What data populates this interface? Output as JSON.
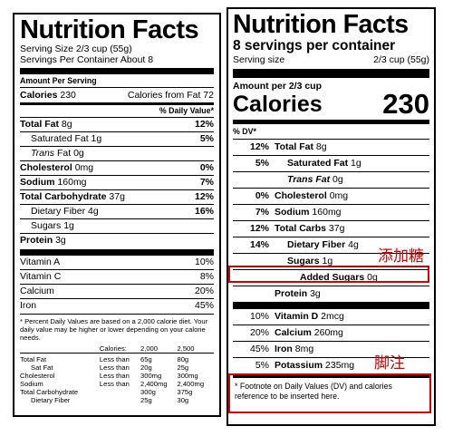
{
  "old_label": {
    "title": "Nutrition Facts",
    "serving_size": "Serving Size 2/3 cup (55g)",
    "servings_per_container": "Servings Per Container About 8",
    "amount_per_serving": "Amount Per Serving",
    "calories_label": "Calories",
    "calories_value": "230",
    "calories_from_fat": "Calories from Fat 72",
    "daily_value_header": "% Daily Value*",
    "nutrients": [
      {
        "name": "Total Fat",
        "amount": "8g",
        "dv": "12%"
      },
      {
        "name": "Saturated Fat",
        "amount": "1g",
        "dv": "5%"
      },
      {
        "name": "Trans",
        "amount": "Fat 0g",
        "dv": ""
      },
      {
        "name": "Cholesterol",
        "amount": "0mg",
        "dv": "0%"
      },
      {
        "name": "Sodium",
        "amount": "160mg",
        "dv": "7%"
      },
      {
        "name": "Total Carbohydrate",
        "amount": "37g",
        "dv": "12%"
      },
      {
        "name": "Dietary Fiber",
        "amount": "4g",
        "dv": "16%"
      },
      {
        "name": "Sugars",
        "amount": "1g",
        "dv": ""
      },
      {
        "name": "Protein",
        "amount": "3g",
        "dv": ""
      }
    ],
    "vitamins": [
      {
        "name": "Vitamin A",
        "dv": "10%"
      },
      {
        "name": "Vitamin C",
        "dv": "8%"
      },
      {
        "name": "Calcium",
        "dv": "20%"
      },
      {
        "name": "Iron",
        "dv": "45%"
      }
    ],
    "footnote": "* Percent Daily Values are based on a 2,000 calorie diet. Your daily value may be higher or lower depending on your calorie needs.",
    "footnote_table": {
      "header": [
        "",
        "Calories:",
        "2,000",
        "2,500"
      ],
      "rows": [
        [
          "Total Fat",
          "Less than",
          "65g",
          "80g"
        ],
        [
          "Sat Fat",
          "Less than",
          "20g",
          "25g"
        ],
        [
          "Cholesterol",
          "Less than",
          "300mg",
          "300mg"
        ],
        [
          "Sodium",
          "Less than",
          "2,400mg",
          "2,400mg"
        ],
        [
          "Total Carbohydrate",
          "",
          "300g",
          "375g"
        ],
        [
          "Dietary Fiber",
          "",
          "25g",
          "30g"
        ]
      ]
    }
  },
  "new_label": {
    "title": "Nutrition Facts",
    "servings_per_container": "8 servings per container",
    "serving_size_label": "Serving size",
    "serving_size_value": "2/3 cup (55g)",
    "amount_per": "Amount per 2/3 cup",
    "calories_label": "Calories",
    "calories_value": "230",
    "dv_header": "% DV*",
    "nutrients": [
      {
        "dv": "12%",
        "name": "Total Fat",
        "amount": "8g"
      },
      {
        "dv": "5%",
        "name": "Saturated Fat",
        "amount": "1g"
      },
      {
        "dv": "",
        "name": "Trans Fat",
        "amount": "0g"
      },
      {
        "dv": "0%",
        "name": "Cholesterol",
        "amount": "0mg"
      },
      {
        "dv": "7%",
        "name": "Sodium",
        "amount": "160mg"
      },
      {
        "dv": "12%",
        "name": "Total Carbs",
        "amount": "37g"
      },
      {
        "dv": "14%",
        "name": "Dietary Fiber",
        "amount": "4g"
      },
      {
        "dv": "",
        "name": "Sugars",
        "amount": "1g"
      },
      {
        "dv": "",
        "name": "Added Sugars",
        "amount": "0g"
      },
      {
        "dv": "",
        "name": "Protein",
        "amount": "3g"
      }
    ],
    "vitamins": [
      {
        "dv": "10%",
        "name": "Vitamin D",
        "amount": "2mcg"
      },
      {
        "dv": "20%",
        "name": "Calcium",
        "amount": "260mg"
      },
      {
        "dv": "45%",
        "name": "Iron",
        "amount": "8mg"
      },
      {
        "dv": "5%",
        "name": "Potassium",
        "amount": "235mg"
      }
    ],
    "footnote": "* Footnote on Daily Values (DV) and calories reference to be inserted here."
  },
  "annotations": {
    "added_sugars_note": "添加糖",
    "footnote_note": "脚注",
    "color": "#d00000"
  }
}
